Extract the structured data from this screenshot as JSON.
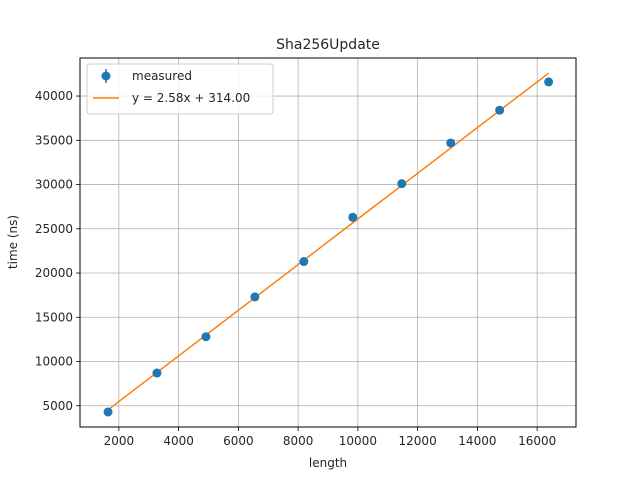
{
  "chart_data": {
    "type": "scatter",
    "title": "Sha256Update",
    "xlabel": "length",
    "ylabel": "time (ns)",
    "xlim": [
      700,
      17300
    ],
    "ylim": [
      2600,
      44300
    ],
    "xticks": [
      2000,
      4000,
      6000,
      8000,
      10000,
      12000,
      14000,
      16000
    ],
    "yticks": [
      5000,
      10000,
      15000,
      20000,
      25000,
      30000,
      35000,
      40000
    ],
    "xtick_labels": [
      "2000",
      "4000",
      "6000",
      "8000",
      "10000",
      "12000",
      "14000",
      "16000"
    ],
    "ytick_labels": [
      "5000",
      "10000",
      "15000",
      "20000",
      "25000",
      "30000",
      "35000",
      "40000"
    ],
    "grid": true,
    "legend_position": "top-left",
    "series": [
      {
        "name": "measured",
        "kind": "errorbar-points",
        "color": "#1f77b4",
        "x": [
          1638,
          3276,
          4915,
          6553,
          8192,
          9830,
          11468,
          13107,
          14745,
          16384
        ],
        "y": [
          4300,
          8700,
          12800,
          17300,
          21300,
          26300,
          30100,
          34700,
          38400,
          41600
        ]
      },
      {
        "name": "y = 2.58x + 314.00",
        "kind": "fit-line",
        "color": "#ff7f0e",
        "slope": 2.58,
        "intercept": 314.0,
        "x": [
          1638,
          16384
        ],
        "y": [
          4540,
          42585
        ]
      }
    ]
  }
}
